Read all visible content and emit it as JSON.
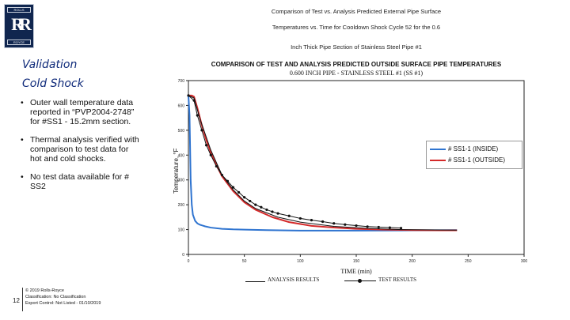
{
  "logo": {
    "top_text": "ROLLS",
    "monogram": "RR",
    "bottom_text": "ROYCE"
  },
  "header": {
    "line1": "Validation",
    "line2": "Cold Shock"
  },
  "bullets": [
    "Outer wall temperature data reported in “PVP2004-2748” for #SS1 - 15.2mm section.",
    "Thermal analysis verified with comparison to test data for hot and cold shocks.",
    "No test data available for # SS2"
  ],
  "footer": {
    "page_number": "12",
    "lines": [
      "© 2019 Rolls-Royce",
      "Classification: No Classification",
      "Export Control: Not Listed - 01/10/2019"
    ]
  },
  "scan_titles": [
    "Comparison of Test vs. Analysis Predicted External Pipe Surface",
    "Temperatures vs. Time for Cooldown Shock Cycle 52 for the 0.6",
    "Inch Thick Pipe Section of Stainless Steel Pipe #1"
  ],
  "chart_data": {
    "type": "line",
    "title": "COMPARISON OF TEST AND ANALYSIS PREDICTED OUTSIDE SURFACE PIPE TEMPERATURES",
    "subtitle": "0.600 INCH PIPE - STAINLESS STEEL #1 (SS #1)",
    "xlabel": "TIME (min)",
    "ylabel": "Temperature, °F",
    "xlim": [
      0,
      300
    ],
    "ylim": [
      0,
      700
    ],
    "xticks": [
      "0",
      "50",
      "100",
      "150",
      "200",
      "250",
      "300"
    ],
    "yticks": [
      "0",
      "100",
      "200",
      "300",
      "400",
      "500",
      "600",
      "700"
    ],
    "colors": {
      "inside": "#2f74d0",
      "outside": "#d42a2a",
      "analysis": "#111111"
    },
    "series": [
      {
        "name": "# SS1-1 (INSIDE)",
        "color": "#2f74d0",
        "x": [
          0,
          1,
          2,
          3,
          4,
          6,
          8,
          10,
          15,
          20,
          30,
          40,
          50,
          70,
          100,
          150,
          200,
          240
        ],
        "y": [
          640,
          560,
          300,
          200,
          160,
          135,
          125,
          120,
          113,
          108,
          103,
          101,
          100,
          98,
          96,
          96,
          97,
          98
        ]
      },
      {
        "name": "# SS1-1 (OUTSIDE)",
        "color": "#d42a2a",
        "x": [
          0,
          3,
          5,
          8,
          12,
          16,
          20,
          25,
          30,
          40,
          50,
          60,
          75,
          90,
          110,
          130,
          150,
          175,
          200,
          225,
          240
        ],
        "y": [
          640,
          640,
          635,
          590,
          520,
          460,
          410,
          360,
          315,
          255,
          210,
          180,
          150,
          130,
          115,
          108,
          103,
          100,
          98,
          97,
          97
        ]
      },
      {
        "name": "ANALYSIS RESULTS",
        "color": "#111111",
        "x": [
          0,
          5,
          10,
          20,
          30,
          40,
          50,
          60,
          80,
          100,
          130,
          160,
          190,
          240
        ],
        "y": [
          640,
          630,
          550,
          420,
          320,
          260,
          215,
          185,
          150,
          130,
          113,
          105,
          100,
          98
        ]
      },
      {
        "name": "TEST RESULTS",
        "color": "#111111",
        "markers": true,
        "x": [
          0,
          5,
          8,
          12,
          16,
          20,
          25,
          30,
          35,
          40,
          45,
          50,
          55,
          60,
          65,
          70,
          75,
          80,
          90,
          100,
          110,
          120,
          130,
          140,
          150,
          160,
          170,
          180,
          190
        ],
        "y": [
          640,
          620,
          560,
          500,
          440,
          400,
          355,
          320,
          295,
          270,
          250,
          230,
          215,
          200,
          190,
          180,
          172,
          165,
          155,
          145,
          138,
          132,
          125,
          120,
          116,
          112,
          110,
          108,
          106
        ]
      }
    ],
    "legend_top": [
      "# SS1-1 (INSIDE)",
      "# SS1-1 (OUTSIDE)"
    ],
    "legend_bottom": [
      "ANALYSIS RESULTS",
      "TEST RESULTS"
    ]
  }
}
